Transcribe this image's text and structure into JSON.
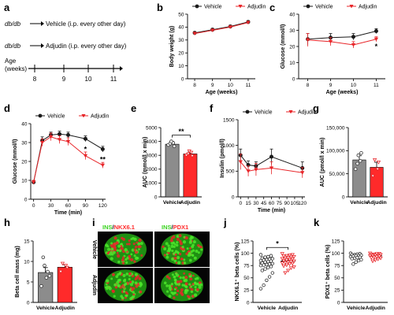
{
  "colors": {
    "vehicle": "#1a1a1a",
    "adjudin": "#e8262a",
    "bar_vehicle": "#8c8c8c",
    "bar_adjudin": "#ff2a2a",
    "ins": "#39d31e",
    "nkx": "#ff2a2a"
  },
  "legend": {
    "vehicle": "Vehicle",
    "adjudin": "Adjudin"
  },
  "panel_a": {
    "letter": "a",
    "row1_model": "db/db",
    "row1_text": "Vehicle (i.p. every other day)",
    "row2_model": "db/db",
    "row2_text": "Adjudin (i.p. every other day)",
    "axis_title_1": "Age",
    "axis_title_2": "(weeks)",
    "ticks": [
      "8",
      "9",
      "10",
      "11"
    ]
  },
  "panel_i": {
    "letter": "i",
    "title1_green": "INS",
    "title1_sep": "/",
    "title1_red": "NKX6.1",
    "title2_green": "INS",
    "title2_sep": "/",
    "title2_red": "PDX1",
    "row_labels": [
      "Vehicle",
      "Adjudin"
    ]
  },
  "chart_data": [
    {
      "id": "b",
      "letter": "b",
      "type": "line",
      "xlabel": "Age (weeks)",
      "ylabel": "Body weight (g)",
      "xlim": [
        7.6,
        11.4
      ],
      "ylim": [
        0,
        50
      ],
      "xticks": [
        8,
        9,
        10,
        11
      ],
      "yticks": [
        0,
        10,
        20,
        30,
        40,
        50
      ],
      "legend": "top",
      "series": [
        {
          "name": "Vehicle",
          "x": [
            8,
            9,
            10,
            11
          ],
          "y": [
            35.5,
            38,
            40.5,
            44
          ],
          "err": [
            1,
            1,
            1,
            1
          ]
        },
        {
          "name": "Adjudin",
          "x": [
            8,
            9,
            10,
            11
          ],
          "y": [
            35,
            37.5,
            40,
            43.5
          ],
          "err": [
            1,
            1,
            1,
            1
          ]
        }
      ],
      "annotations": []
    },
    {
      "id": "c",
      "letter": "c",
      "type": "line",
      "xlabel": "Age (weeks)",
      "ylabel": "Glucose (mmol/l)",
      "xlim": [
        7.6,
        11.4
      ],
      "ylim": [
        0,
        40
      ],
      "xticks": [
        8,
        9,
        10,
        11
      ],
      "yticks": [
        0,
        10,
        20,
        30,
        40
      ],
      "legend": "top",
      "series": [
        {
          "name": "Vehicle",
          "x": [
            8,
            9,
            10,
            11
          ],
          "y": [
            24.5,
            25.5,
            26,
            29.5
          ],
          "err": [
            3.5,
            2.5,
            2,
            1.5
          ]
        },
        {
          "name": "Adjudin",
          "x": [
            8,
            9,
            10,
            11
          ],
          "y": [
            24,
            23,
            21,
            24.5
          ],
          "err": [
            4,
            2.5,
            2,
            1.5
          ]
        }
      ],
      "annotations": [
        {
          "text": "*",
          "x": 11,
          "y": 20
        }
      ]
    },
    {
      "id": "d",
      "letter": "d",
      "type": "line",
      "xlabel": "Time (min)",
      "ylabel": "Glucose (mmol/l)",
      "xlim": [
        -5,
        125
      ],
      "ylim": [
        0,
        40
      ],
      "xticks": [
        0,
        30,
        60,
        90,
        120
      ],
      "yticks": [
        0,
        10,
        20,
        30,
        40
      ],
      "legend": "top",
      "series": [
        {
          "name": "Vehicle",
          "x": [
            0,
            15,
            30,
            45,
            60,
            90,
            120
          ],
          "y": [
            9,
            31,
            34,
            34.5,
            34,
            32,
            26.5
          ],
          "err": [
            1,
            2,
            1.5,
            1.5,
            1.5,
            1.5,
            1.5
          ]
        },
        {
          "name": "Adjudin",
          "x": [
            0,
            15,
            30,
            45,
            60,
            90,
            120
          ],
          "y": [
            9,
            30,
            33,
            31.5,
            30.5,
            23,
            18
          ],
          "err": [
            1,
            2,
            2,
            2,
            2,
            2,
            1.5
          ]
        }
      ],
      "annotations": [
        {
          "text": "*",
          "x": 90,
          "y": 26.5
        },
        {
          "text": "**",
          "x": 120,
          "y": 21
        }
      ]
    },
    {
      "id": "e",
      "letter": "e",
      "type": "bar",
      "xlabel": "",
      "ylabel": "AUC (mmol/l x min)",
      "categories": [
        "Vehicle",
        "Adjudin"
      ],
      "ylim": [
        0,
        5000
      ],
      "yticks": [
        0,
        1000,
        2000,
        3000,
        4000,
        5000
      ],
      "values": [
        3800,
        3100
      ],
      "err": [
        150,
        150
      ],
      "points": [
        [
          3750,
          3900,
          3650,
          3850,
          4000
        ],
        [
          3000,
          3200,
          2950,
          3100,
          3300
        ]
      ],
      "significance": "**"
    },
    {
      "id": "f",
      "letter": "f",
      "type": "line",
      "xlabel": "Time (min)",
      "ylabel": "Insulin (pmol/l)",
      "xlim": [
        -5,
        125
      ],
      "ylim": [
        0,
        1500
      ],
      "xticks": [
        0,
        15,
        30,
        45,
        60,
        75,
        90,
        105,
        120
      ],
      "yticks": [
        0,
        500,
        1000,
        1500
      ],
      "legend": "top",
      "series": [
        {
          "name": "Vehicle",
          "x": [
            0,
            15,
            30,
            60,
            120
          ],
          "y": [
            810,
            620,
            600,
            780,
            560
          ],
          "err": [
            120,
            80,
            80,
            150,
            120
          ]
        },
        {
          "name": "Adjudin",
          "x": [
            0,
            15,
            30,
            60,
            120
          ],
          "y": [
            680,
            500,
            530,
            560,
            470
          ],
          "err": [
            150,
            100,
            120,
            120,
            100
          ]
        }
      ],
      "annotations": []
    },
    {
      "id": "g",
      "letter": "g",
      "type": "bar",
      "xlabel": "",
      "ylabel": "AUC (pmol/l x min)",
      "categories": [
        "Vehicle",
        "Adjudin"
      ],
      "ylim": [
        0,
        150000
      ],
      "yticks": [
        0,
        50000,
        100000,
        150000
      ],
      "ytick_labels": [
        "0",
        "50,000",
        "100,000",
        "150,000"
      ],
      "values": [
        80000,
        64000
      ],
      "err": [
        9000,
        11000
      ],
      "points": [
        [
          60000,
          78000,
          95000,
          72000,
          90000
        ],
        [
          45000,
          60000,
          75000,
          80000
        ]
      ],
      "significance": ""
    },
    {
      "id": "h",
      "letter": "h",
      "type": "bar",
      "xlabel": "",
      "ylabel": "Beta cell mass (mg)",
      "categories": [
        "Vehicle",
        "Adjudin"
      ],
      "ylim": [
        0,
        15
      ],
      "yticks": [
        0,
        5,
        10,
        15
      ],
      "values": [
        7.3,
        8.6
      ],
      "err": [
        1.2,
        0.6
      ],
      "points": [
        [
          4,
          6,
          7.5,
          11,
          9,
          6.5
        ],
        [
          7.5,
          9,
          8.5,
          9.5
        ]
      ],
      "significance": ""
    },
    {
      "id": "j",
      "letter": "j",
      "type": "scatter",
      "xlabel": "",
      "ylabel": "NKX6.1⁺ beta cells (%)",
      "categories": [
        "Vehicle",
        "Adjudin"
      ],
      "ylim": [
        0,
        125
      ],
      "yticks": [
        0,
        25,
        50,
        75,
        100,
        125
      ],
      "values": [
        80,
        84
      ],
      "err": [
        3,
        2
      ],
      "points": [
        [
          97,
          95,
          93,
          92,
          90,
          89,
          88,
          87,
          86,
          85,
          84,
          83,
          82,
          80,
          79,
          78,
          77,
          76,
          75,
          73,
          71,
          68,
          65,
          60,
          52,
          45,
          35,
          28
        ],
        [
          99,
          97,
          96,
          95,
          94,
          93,
          92,
          91,
          90,
          89,
          88,
          87,
          86,
          85,
          84,
          83,
          82,
          81,
          80,
          79,
          78,
          76,
          74,
          72,
          70,
          65,
          60
        ]
      ],
      "significance": "*"
    },
    {
      "id": "k",
      "letter": "k",
      "type": "scatter",
      "xlabel": "",
      "ylabel": "PDX1⁺ beta cells (%)",
      "categories": [
        "Vehicle",
        "Adjudin"
      ],
      "ylim": [
        0,
        125
      ],
      "yticks": [
        0,
        25,
        50,
        75,
        100,
        125
      ],
      "values": [
        94,
        95
      ],
      "err": [
        1,
        1
      ],
      "points": [
        [
          100,
          99,
          98,
          97,
          97,
          96,
          95,
          95,
          94,
          93,
          92,
          91,
          90,
          89,
          87,
          85,
          82,
          78
        ],
        [
          100,
          99,
          99,
          98,
          97,
          97,
          96,
          96,
          95,
          95,
          94,
          93,
          92,
          91,
          90,
          88,
          86,
          84
        ]
      ],
      "significance": ""
    }
  ]
}
